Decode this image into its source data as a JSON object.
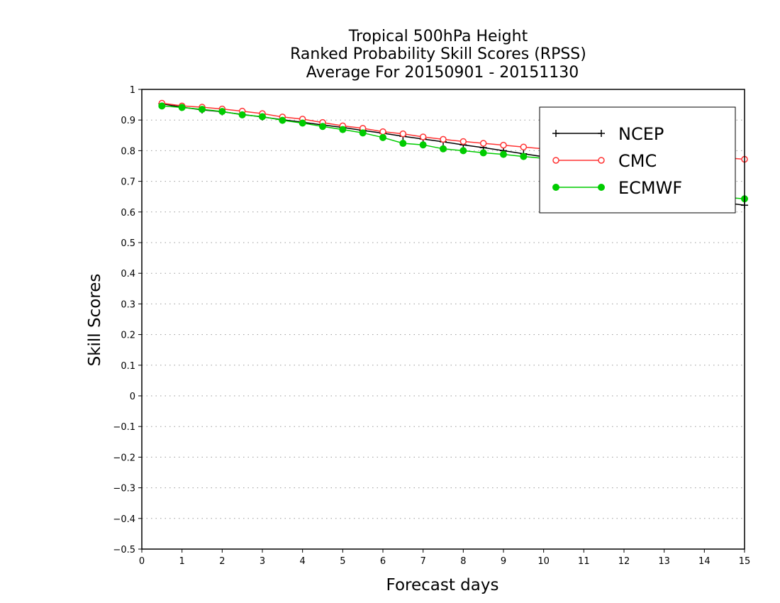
{
  "chart_data": {
    "type": "line",
    "title": [
      "Tropical 500hPa Height",
      "Ranked Probability Skill Scores (RPSS)",
      "Average For 20150901 - 20151130"
    ],
    "xlabel": "Forecast days",
    "ylabel": "Skill Scores",
    "xlim": [
      0,
      15
    ],
    "ylim": [
      -0.5,
      1
    ],
    "xticks": [
      "0",
      "1",
      "2",
      "3",
      "4",
      "5",
      "6",
      "7",
      "8",
      "9",
      "10",
      "11",
      "12",
      "13",
      "14",
      "15"
    ],
    "yticks": [
      "1",
      "0.9",
      "0.8",
      "0.7",
      "0.6",
      "0.5",
      "0.4",
      "0.3",
      "0.2",
      "0.1",
      "0",
      "−0.1",
      "−0.2",
      "−0.3",
      "−0.4",
      "−0.5"
    ],
    "ytick_values": [
      1,
      0.9,
      0.8,
      0.7,
      0.6,
      0.5,
      0.4,
      0.3,
      0.2,
      0.1,
      0,
      -0.1,
      -0.2,
      -0.3,
      -0.4,
      -0.5
    ],
    "grid": "horizontal dotted",
    "legend_position": "top-right",
    "x": [
      0.5,
      1,
      1.5,
      2,
      2.5,
      3,
      3.5,
      4,
      4.5,
      5,
      5.5,
      6,
      6.5,
      7,
      7.5,
      8,
      8.5,
      9,
      9.5,
      10,
      10.5,
      11,
      11.5,
      12,
      12.5,
      13,
      13.5,
      14,
      14.5,
      15
    ],
    "series": [
      {
        "name": "NCEP",
        "color": "#000000",
        "marker": "plus",
        "values": [
          0.953,
          0.942,
          0.933,
          0.927,
          0.918,
          0.91,
          0.901,
          0.893,
          0.884,
          0.876,
          0.866,
          0.857,
          0.847,
          0.838,
          0.829,
          0.819,
          0.81,
          0.8,
          0.79,
          0.78,
          0.77,
          0.76,
          0.75,
          0.74,
          0.728,
          0.715,
          0.7,
          0.682,
          0.63,
          0.622
        ]
      },
      {
        "name": "CMC",
        "color": "#ff3333",
        "marker": "open-circle",
        "values": [
          0.955,
          0.946,
          0.942,
          0.936,
          0.929,
          0.921,
          0.91,
          0.903,
          0.892,
          0.881,
          0.873,
          0.862,
          0.855,
          0.845,
          0.837,
          0.83,
          0.824,
          0.818,
          0.812,
          0.806,
          0.802,
          0.799,
          0.796,
          0.793,
          0.79,
          0.787,
          0.784,
          0.78,
          0.777,
          0.772
        ]
      },
      {
        "name": "ECMWF",
        "color": "#00cc00",
        "marker": "filled-circle",
        "values": [
          0.946,
          0.941,
          0.935,
          0.928,
          0.917,
          0.911,
          0.899,
          0.89,
          0.879,
          0.869,
          0.858,
          0.843,
          0.824,
          0.819,
          0.806,
          0.8,
          0.793,
          0.788,
          0.781,
          0.775,
          0.768,
          0.757,
          0.746,
          0.735,
          0.722,
          0.709,
          0.695,
          0.672,
          0.648,
          0.643
        ]
      }
    ]
  }
}
